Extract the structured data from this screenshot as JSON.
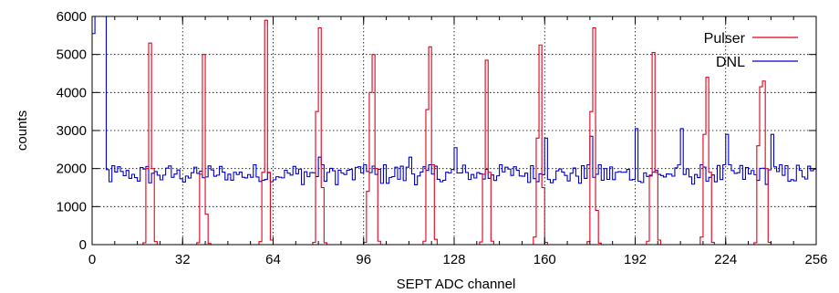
{
  "chart_data": {
    "type": "line",
    "title": "",
    "xlabel": "SEPT ADC channel",
    "ylabel": "counts",
    "xlim": [
      0,
      256
    ],
    "ylim": [
      0,
      6000
    ],
    "xticks": [
      0,
      32,
      64,
      96,
      128,
      160,
      192,
      224,
      256
    ],
    "yticks": [
      0,
      1000,
      2000,
      3000,
      4000,
      5000,
      6000
    ],
    "grid": true,
    "legend_position": "top-right",
    "step_histogram": true,
    "series": [
      {
        "name": "Pulser",
        "color": "#e0001b",
        "peaks": [
          {
            "center": 19.5,
            "values": [
              50,
              2000,
              5300,
              2000,
              80
            ]
          },
          {
            "center": 39,
            "values": [
              50,
              1850,
              5000,
              800,
              30
            ]
          },
          {
            "center": 60.5,
            "values": [
              80,
              1900,
              5900,
              1900,
              120
            ]
          },
          {
            "center": 80,
            "values": [
              60,
              3500,
              5700,
              1500,
              50
            ]
          },
          {
            "center": 98.5,
            "values": [
              60,
              1400,
              4000,
              5000,
              2000,
              90
            ]
          },
          {
            "center": 118.5,
            "values": [
              90,
              3550,
              5200,
              2100,
              140
            ]
          },
          {
            "center": 138.5,
            "values": [
              70,
              1850,
              4850,
              1900,
              90
            ]
          },
          {
            "center": 157.5,
            "values": [
              200,
              2800,
              5250,
              1500,
              60
            ]
          },
          {
            "center": 176.5,
            "values": [
              80,
              3500,
              5700,
              900,
              40
            ]
          },
          {
            "center": 197.5,
            "values": [
              90,
              1800,
              5050,
              1900,
              120
            ]
          },
          {
            "center": 216.5,
            "values": [
              200,
              2900,
              4400,
              1900,
              60
            ]
          },
          {
            "center": 236.5,
            "values": [
              50,
              2600,
              4150,
              4300,
              2000,
              60
            ]
          }
        ]
      },
      {
        "name": "DNL",
        "color": "#0000cc",
        "baseline_range": [
          1500,
          2100
        ],
        "spikes": [
          {
            "channel": 0,
            "value": 5550
          },
          {
            "channel": 1,
            "value": 6000
          },
          {
            "channel": 2,
            "value": 6000
          },
          {
            "channel": 3,
            "value": 6000
          },
          {
            "channel": 4,
            "value": 6000
          },
          {
            "channel": 80,
            "value": 2300
          },
          {
            "channel": 96,
            "value": 2100
          },
          {
            "channel": 112,
            "value": 2300
          },
          {
            "channel": 128,
            "value": 2550
          },
          {
            "channel": 144,
            "value": 2100
          },
          {
            "channel": 160,
            "value": 2800
          },
          {
            "channel": 176,
            "value": 2850
          },
          {
            "channel": 192,
            "value": 3050
          },
          {
            "channel": 208,
            "value": 3050
          },
          {
            "channel": 224,
            "value": 2900
          },
          {
            "channel": 240,
            "value": 2900
          }
        ]
      }
    ]
  }
}
